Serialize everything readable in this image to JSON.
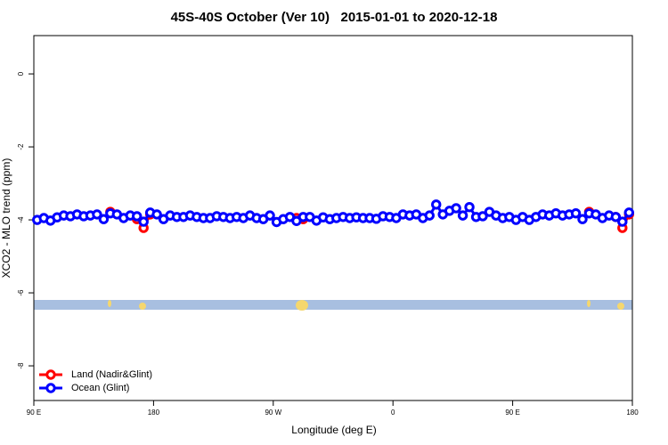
{
  "chart_data": {
    "type": "line",
    "title": "45S-40S October (Ver 10)   2015-01-01 to 2020-12-18",
    "x_label": "Longitude (deg E)",
    "y_label": "XCO2 - MLO trend (ppm)",
    "xlim": [
      90,
      540
    ],
    "ylim": [
      -8.95,
      1.05
    ],
    "xticks": [
      {
        "value": 90,
        "label": "90 E"
      },
      180,
      {
        "value": 270,
        "label": "90 W"
      },
      {
        "value": 360,
        "label": "0"
      },
      {
        "value": 450,
        "label": "90 E"
      },
      {
        "value": 540,
        "label": "180"
      }
    ],
    "yticks": [
      0,
      -2,
      -4,
      -6,
      -8
    ],
    "legend": "bottomleft",
    "x": [
      92.5,
      97.5,
      102.5,
      107.5,
      112.5,
      117.5,
      122.5,
      127.5,
      132.5,
      137.5,
      142.5,
      147.5,
      152.5,
      157.5,
      162.5,
      167.5,
      172.5,
      177.5,
      182.5,
      187.5,
      192.5,
      197.5,
      202.5,
      207.5,
      212.5,
      217.5,
      222.5,
      227.5,
      232.5,
      237.5,
      242.5,
      247.5,
      252.5,
      257.5,
      262.5,
      267.5,
      272.5,
      277.5,
      282.5,
      287.5,
      292.5,
      297.5,
      302.5,
      307.5,
      312.5,
      317.5,
      322.5,
      327.5,
      332.5,
      337.5,
      342.5,
      347.5,
      352.5,
      357.5,
      362.5,
      367.5,
      372.5,
      377.5,
      382.5,
      387.5,
      392.5,
      397.5,
      402.5,
      407.5,
      412.5,
      417.5,
      422.5,
      427.5,
      432.5,
      437.5,
      442.5,
      447.5,
      452.5,
      457.5,
      462.5,
      467.5,
      472.5,
      477.5,
      482.5,
      487.5,
      492.5,
      497.5,
      502.5,
      507.5,
      512.5,
      517.5,
      522.5,
      527.5,
      532.5,
      537.5
    ],
    "series": [
      {
        "name": "Land (Nadir&Glint)",
        "color": "#ff0000",
        "values": [
          null,
          null,
          null,
          null,
          null,
          null,
          null,
          null,
          null,
          null,
          null,
          -3.78,
          null,
          null,
          null,
          -3.98,
          -4.22,
          -3.85,
          null,
          null,
          null,
          null,
          null,
          null,
          null,
          null,
          null,
          null,
          null,
          null,
          null,
          null,
          null,
          null,
          null,
          null,
          null,
          null,
          null,
          -3.95,
          -3.98,
          null,
          null,
          null,
          null,
          null,
          null,
          null,
          null,
          null,
          null,
          null,
          null,
          null,
          null,
          null,
          null,
          null,
          null,
          null,
          null,
          null,
          null,
          null,
          null,
          null,
          null,
          null,
          null,
          null,
          null,
          null,
          null,
          null,
          null,
          null,
          null,
          null,
          null,
          null,
          null,
          null,
          null,
          -3.78,
          null,
          null,
          null,
          -3.92,
          -4.22,
          -3.85
        ]
      },
      {
        "name": "Ocean (Glint)",
        "color": "#0000ff",
        "values": [
          -4.0,
          -3.95,
          -4.02,
          -3.93,
          -3.88,
          -3.9,
          -3.85,
          -3.9,
          -3.88,
          -3.85,
          -3.98,
          -3.82,
          -3.85,
          -3.95,
          -3.88,
          -3.9,
          -4.05,
          -3.8,
          -3.85,
          -3.98,
          -3.88,
          -3.92,
          -3.92,
          -3.88,
          -3.92,
          -3.95,
          -3.95,
          -3.9,
          -3.92,
          -3.95,
          -3.92,
          -3.95,
          -3.88,
          -3.95,
          -3.98,
          -3.88,
          -4.06,
          -3.98,
          -3.92,
          -4.03,
          -3.92,
          -3.92,
          -4.02,
          -3.93,
          -3.98,
          -3.95,
          -3.92,
          -3.95,
          -3.93,
          -3.95,
          -3.95,
          -3.97,
          -3.9,
          -3.92,
          -3.95,
          -3.85,
          -3.88,
          -3.85,
          -3.95,
          -3.88,
          -3.58,
          -3.85,
          -3.75,
          -3.68,
          -3.88,
          -3.65,
          -3.92,
          -3.9,
          -3.78,
          -3.88,
          -3.95,
          -3.92,
          -4.0,
          -3.92,
          -4.0,
          -3.92,
          -3.85,
          -3.88,
          -3.82,
          -3.88,
          -3.85,
          -3.82,
          -3.98,
          -3.82,
          -3.85,
          -3.95,
          -3.88,
          -3.92,
          -4.05,
          -3.8
        ]
      }
    ]
  }
}
